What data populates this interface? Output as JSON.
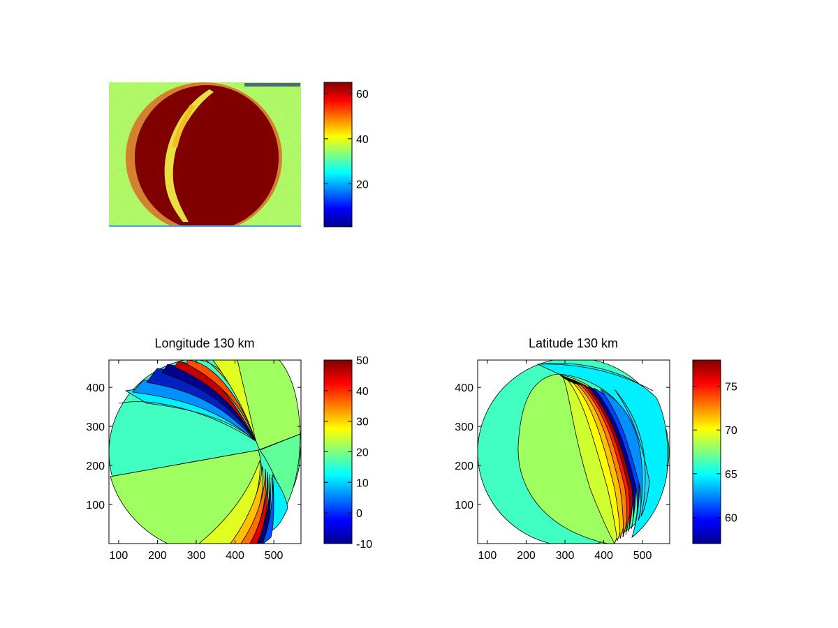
{
  "figure": {
    "background": "#ffffff"
  },
  "chart_data": [
    {
      "type": "heatmap",
      "title": "",
      "xlabel": "",
      "ylabel": "",
      "content": "all-sky image",
      "axes_visible": false,
      "colorbar": {
        "range": [
          1,
          65
        ],
        "ticks": [
          20,
          40,
          60
        ],
        "labels": [
          "20",
          "40",
          "60"
        ]
      },
      "colormap": "jet",
      "background_level_color": "#a8f870",
      "disk_level_color": "#800000"
    },
    {
      "type": "heatmap",
      "title": "Longitude 130 km",
      "xlabel": "",
      "ylabel": "",
      "xlim": [
        75,
        570
      ],
      "ylim": [
        0,
        470
      ],
      "xticks": [
        100,
        200,
        300,
        400,
        500
      ],
      "xtick_labels": [
        "100",
        "200",
        "300",
        "400",
        "500"
      ],
      "yticks": [
        100,
        200,
        300,
        400
      ],
      "ytick_labels": [
        "100",
        "200",
        "300",
        "400"
      ],
      "colorbar": {
        "range": [
          -10,
          50
        ],
        "ticks": [
          -10,
          0,
          10,
          20,
          30,
          40,
          50
        ],
        "labels": [
          "-10",
          "0",
          "10",
          "20",
          "30",
          "40",
          "50"
        ]
      },
      "contour_fill": "filled contour, jet colormap",
      "region_colors": [
        "#40ffc0",
        "#a0ff60",
        "#00f0ff",
        "#60ff98",
        "#e0ff20",
        "#ffd000",
        "#ff9000",
        "#ff4000",
        "#c00000",
        "#0060ff",
        "#0000a0"
      ]
    },
    {
      "type": "heatmap",
      "title": "Latitude 130 km",
      "xlabel": "",
      "ylabel": "",
      "xlim": [
        75,
        570
      ],
      "ylim": [
        0,
        470
      ],
      "xticks": [
        100,
        200,
        300,
        400,
        500
      ],
      "xtick_labels": [
        "100",
        "200",
        "300",
        "400",
        "500"
      ],
      "yticks": [
        100,
        200,
        300,
        400
      ],
      "ytick_labels": [
        "100",
        "200",
        "300",
        "400"
      ],
      "colorbar": {
        "range": [
          57,
          78
        ],
        "ticks": [
          60,
          65,
          70,
          75
        ],
        "labels": [
          "60",
          "65",
          "70",
          "75"
        ]
      },
      "contour_fill": "filled contour, jet colormap",
      "region_colors": [
        "#40ffc0",
        "#a0ff60",
        "#d0ff30",
        "#ffff00",
        "#ffd000",
        "#ffa000",
        "#ff5000",
        "#00f0ff",
        "#00a0ff",
        "#0040ff",
        "#0000a0"
      ]
    }
  ]
}
